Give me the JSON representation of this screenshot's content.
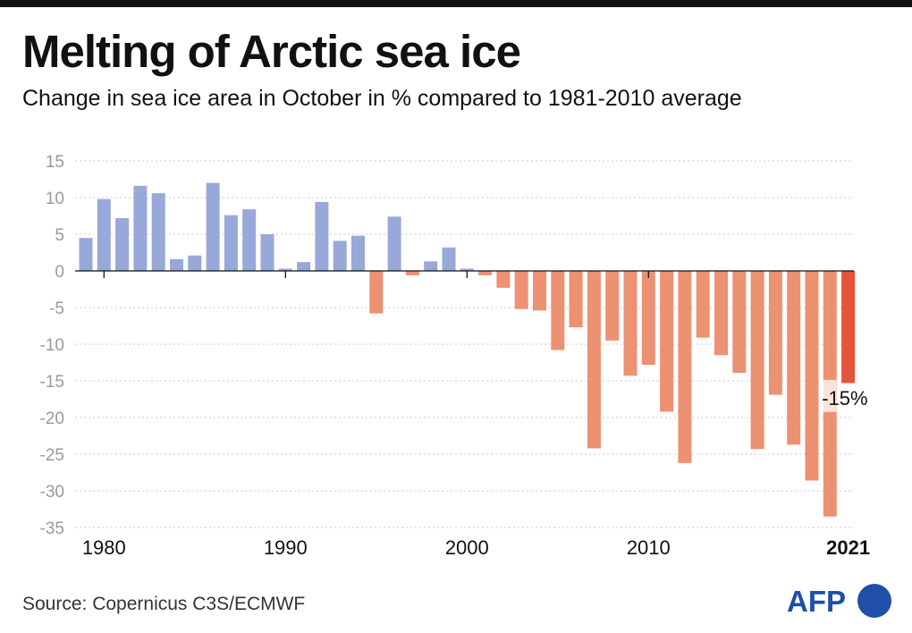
{
  "header": {
    "title": "Melting of Arctic sea ice",
    "subtitle": "Change in sea ice area in October in % compared to 1981-2010 average"
  },
  "footer": {
    "source": "Source: Copernicus C3S/ECMWF",
    "logo_text": "AFP"
  },
  "colors": {
    "positive": "#98a8d8",
    "negative": "#ec9172",
    "highlight": "#e4543a",
    "axis": "#111111",
    "grid": "#c8c8c8",
    "tick_text": "#9a9a9a"
  },
  "chart_data": {
    "type": "bar",
    "title": "Melting of Arctic sea ice",
    "subtitle": "Change in sea ice area in October in % compared to 1981-2010 average",
    "xlabel": "",
    "ylabel": "",
    "ylim": [
      -35,
      15
    ],
    "yticks": [
      15,
      10,
      5,
      0,
      -5,
      -10,
      -15,
      -20,
      -25,
      -30,
      -35
    ],
    "grid": true,
    "x_tick_labels": [
      {
        "year": 1980,
        "label": "1980",
        "bold": false
      },
      {
        "year": 1990,
        "label": "1990",
        "bold": false
      },
      {
        "year": 2000,
        "label": "2000",
        "bold": false
      },
      {
        "year": 2010,
        "label": "2010",
        "bold": false
      },
      {
        "year": 2021,
        "label": "2021",
        "bold": true
      }
    ],
    "categories": [
      1979,
      1980,
      1981,
      1982,
      1983,
      1984,
      1985,
      1986,
      1987,
      1988,
      1989,
      1990,
      1991,
      1992,
      1993,
      1994,
      1995,
      1996,
      1997,
      1998,
      1999,
      2000,
      2001,
      2002,
      2003,
      2004,
      2005,
      2006,
      2007,
      2008,
      2009,
      2010,
      2011,
      2012,
      2013,
      2014,
      2015,
      2016,
      2017,
      2018,
      2019,
      2020,
      2021
    ],
    "values": [
      4.5,
      9.8,
      7.2,
      11.6,
      10.6,
      1.6,
      2.1,
      12.0,
      7.6,
      8.4,
      5.0,
      0.3,
      1.2,
      9.4,
      4.1,
      4.8,
      -5.8,
      7.4,
      -0.6,
      1.3,
      3.2,
      0.3,
      -0.6,
      -2.3,
      -5.2,
      -5.4,
      -10.8,
      -7.7,
      -24.2,
      -9.5,
      -14.3,
      -12.8,
      -19.2,
      -26.2,
      -9.1,
      -11.5,
      -13.9,
      -24.3,
      -16.9,
      -23.7,
      -28.6,
      -33.5,
      -15.3
    ],
    "annotation": {
      "year": 2021,
      "label": "-15%"
    }
  }
}
